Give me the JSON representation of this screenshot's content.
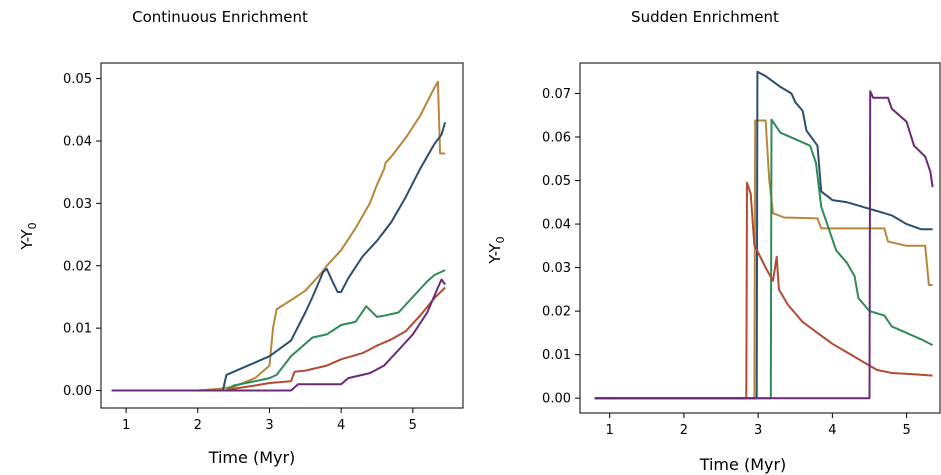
{
  "chart_data": [
    {
      "type": "line",
      "title": "Continuous Enrichment",
      "xlabel": "Time (Myr)",
      "ylabel": "Y-Y",
      "ylabel_subscript": "0",
      "xlim": [
        0.65,
        5.7
      ],
      "ylim": [
        -0.0028,
        0.0525
      ],
      "xticks": [
        1,
        2,
        3,
        4,
        5
      ],
      "yticks": [
        0.0,
        0.01,
        0.02,
        0.03,
        0.04,
        0.05
      ],
      "ytick_labels": [
        "0.00",
        "0.01",
        "0.02",
        "0.03",
        "0.04",
        "0.05"
      ],
      "series": [
        {
          "color": "#b8863b",
          "points": [
            [
              0.8,
              0
            ],
            [
              2.0,
              0
            ],
            [
              2.3,
              0.0003
            ],
            [
              2.5,
              0.0006
            ],
            [
              2.8,
              0.002
            ],
            [
              3.0,
              0.004
            ],
            [
              3.05,
              0.01
            ],
            [
              3.1,
              0.013
            ],
            [
              3.3,
              0.0145
            ],
            [
              3.5,
              0.016
            ],
            [
              3.7,
              0.0185
            ],
            [
              3.8,
              0.02
            ],
            [
              4.0,
              0.0225
            ],
            [
              4.2,
              0.026
            ],
            [
              4.4,
              0.03
            ],
            [
              4.5,
              0.033
            ],
            [
              4.6,
              0.0355
            ],
            [
              4.62,
              0.0365
            ],
            [
              4.7,
              0.0375
            ],
            [
              4.9,
              0.0405
            ],
            [
              5.1,
              0.044
            ],
            [
              5.3,
              0.0485
            ],
            [
              5.35,
              0.0495
            ],
            [
              5.38,
              0.038
            ],
            [
              5.45,
              0.038
            ]
          ]
        },
        {
          "color": "#2b506e",
          "points": [
            [
              0.8,
              0
            ],
            [
              2.35,
              0
            ],
            [
              2.4,
              0.0025
            ],
            [
              2.7,
              0.004
            ],
            [
              3.0,
              0.0055
            ],
            [
              3.3,
              0.008
            ],
            [
              3.5,
              0.0125
            ],
            [
              3.6,
              0.015
            ],
            [
              3.75,
              0.019
            ],
            [
              3.8,
              0.0195
            ],
            [
              3.88,
              0.0175
            ],
            [
              3.95,
              0.0158
            ],
            [
              4.0,
              0.0158
            ],
            [
              4.1,
              0.018
            ],
            [
              4.3,
              0.0215
            ],
            [
              4.5,
              0.024
            ],
            [
              4.7,
              0.027
            ],
            [
              4.9,
              0.031
            ],
            [
              5.1,
              0.0355
            ],
            [
              5.3,
              0.0395
            ],
            [
              5.4,
              0.041
            ],
            [
              5.45,
              0.043
            ]
          ]
        },
        {
          "color": "#2e8b57",
          "points": [
            [
              0.8,
              0
            ],
            [
              2.4,
              0
            ],
            [
              2.5,
              0.0008
            ],
            [
              2.8,
              0.0015
            ],
            [
              3.0,
              0.002
            ],
            [
              3.1,
              0.0025
            ],
            [
              3.2,
              0.004
            ],
            [
              3.3,
              0.0055
            ],
            [
              3.5,
              0.0075
            ],
            [
              3.6,
              0.0085
            ],
            [
              3.8,
              0.009
            ],
            [
              4.0,
              0.0105
            ],
            [
              4.2,
              0.011
            ],
            [
              4.35,
              0.0135
            ],
            [
              4.5,
              0.0118
            ],
            [
              4.6,
              0.012
            ],
            [
              4.8,
              0.0125
            ],
            [
              5.0,
              0.015
            ],
            [
              5.2,
              0.0175
            ],
            [
              5.3,
              0.0185
            ],
            [
              5.45,
              0.0193
            ]
          ]
        },
        {
          "color": "#b34a34",
          "points": [
            [
              0.8,
              0
            ],
            [
              2.4,
              0
            ],
            [
              2.5,
              0.0003
            ],
            [
              2.8,
              0.0008
            ],
            [
              3.0,
              0.0012
            ],
            [
              3.3,
              0.0015
            ],
            [
              3.35,
              0.003
            ],
            [
              3.5,
              0.0032
            ],
            [
              3.8,
              0.004
            ],
            [
              4.0,
              0.005
            ],
            [
              4.3,
              0.006
            ],
            [
              4.5,
              0.0072
            ],
            [
              4.7,
              0.0082
            ],
            [
              4.9,
              0.0095
            ],
            [
              5.1,
              0.012
            ],
            [
              5.3,
              0.0148
            ],
            [
              5.45,
              0.0165
            ]
          ]
        },
        {
          "color": "#6b2a77",
          "points": [
            [
              0.8,
              0
            ],
            [
              3.3,
              0
            ],
            [
              3.4,
              0.001
            ],
            [
              4.0,
              0.001
            ],
            [
              4.1,
              0.002
            ],
            [
              4.4,
              0.0028
            ],
            [
              4.6,
              0.004
            ],
            [
              4.8,
              0.0065
            ],
            [
              5.0,
              0.009
            ],
            [
              5.2,
              0.0125
            ],
            [
              5.35,
              0.0165
            ],
            [
              5.4,
              0.0178
            ],
            [
              5.45,
              0.017
            ]
          ]
        }
      ]
    },
    {
      "type": "line",
      "title": "Sudden Enrichment",
      "xlabel": "Time (Myr)",
      "ylabel": "Y-Y",
      "ylabel_subscript": "0",
      "xlim": [
        0.6,
        5.45
      ],
      "ylim": [
        -0.0034,
        0.077
      ],
      "xticks": [
        1,
        2,
        3,
        4,
        5
      ],
      "yticks": [
        0.0,
        0.01,
        0.02,
        0.03,
        0.04,
        0.05,
        0.06,
        0.07
      ],
      "ytick_labels": [
        "0.00",
        "0.01",
        "0.02",
        "0.03",
        "0.04",
        "0.05",
        "0.06",
        "0.07"
      ],
      "series": [
        {
          "color": "#b8863b",
          "points": [
            [
              0.8,
              0
            ],
            [
              2.95,
              0
            ],
            [
              2.96,
              0.0638
            ],
            [
              3.1,
              0.0638
            ],
            [
              3.15,
              0.05
            ],
            [
              3.2,
              0.0425
            ],
            [
              3.35,
              0.0415
            ],
            [
              3.8,
              0.0413
            ],
            [
              3.85,
              0.039
            ],
            [
              4.7,
              0.039
            ],
            [
              4.75,
              0.036
            ],
            [
              5.0,
              0.035
            ],
            [
              5.25,
              0.035
            ],
            [
              5.3,
              0.026
            ],
            [
              5.35,
              0.026
            ]
          ]
        },
        {
          "color": "#2b506e",
          "points": [
            [
              0.8,
              0
            ],
            [
              2.98,
              0
            ],
            [
              2.99,
              0.075
            ],
            [
              3.1,
              0.074
            ],
            [
              3.3,
              0.0715
            ],
            [
              3.45,
              0.07
            ],
            [
              3.5,
              0.068
            ],
            [
              3.6,
              0.066
            ],
            [
              3.65,
              0.0615
            ],
            [
              3.8,
              0.058
            ],
            [
              3.85,
              0.0475
            ],
            [
              4.0,
              0.0455
            ],
            [
              4.2,
              0.045
            ],
            [
              4.4,
              0.044
            ],
            [
              4.6,
              0.043
            ],
            [
              4.8,
              0.042
            ],
            [
              5.0,
              0.04
            ],
            [
              5.2,
              0.0388
            ],
            [
              5.35,
              0.0388
            ]
          ]
        },
        {
          "color": "#2e8b57",
          "points": [
            [
              0.8,
              0
            ],
            [
              3.17,
              0
            ],
            [
              3.18,
              0.064
            ],
            [
              3.3,
              0.061
            ],
            [
              3.5,
              0.0595
            ],
            [
              3.7,
              0.058
            ],
            [
              3.78,
              0.054
            ],
            [
              3.85,
              0.044
            ],
            [
              3.95,
              0.039
            ],
            [
              4.05,
              0.034
            ],
            [
              4.2,
              0.031
            ],
            [
              4.3,
              0.028
            ],
            [
              4.35,
              0.023
            ],
            [
              4.5,
              0.02
            ],
            [
              4.7,
              0.019
            ],
            [
              4.8,
              0.0165
            ],
            [
              5.0,
              0.015
            ],
            [
              5.2,
              0.0135
            ],
            [
              5.35,
              0.0122
            ]
          ]
        },
        {
          "color": "#b34a34",
          "points": [
            [
              0.8,
              0
            ],
            [
              2.84,
              0
            ],
            [
              2.85,
              0.0495
            ],
            [
              2.9,
              0.047
            ],
            [
              2.95,
              0.035
            ],
            [
              3.0,
              0.0335
            ],
            [
              3.1,
              0.03
            ],
            [
              3.2,
              0.027
            ],
            [
              3.25,
              0.0325
            ],
            [
              3.28,
              0.025
            ],
            [
              3.4,
              0.0215
            ],
            [
              3.6,
              0.0175
            ],
            [
              3.8,
              0.015
            ],
            [
              4.0,
              0.0125
            ],
            [
              4.2,
              0.0105
            ],
            [
              4.4,
              0.0085
            ],
            [
              4.6,
              0.0065
            ],
            [
              4.8,
              0.0058
            ],
            [
              5.1,
              0.0055
            ],
            [
              5.35,
              0.0052
            ]
          ]
        },
        {
          "color": "#6b2a77",
          "points": [
            [
              0.8,
              0
            ],
            [
              4.5,
              0
            ],
            [
              4.51,
              0.0705
            ],
            [
              4.55,
              0.069
            ],
            [
              4.75,
              0.069
            ],
            [
              4.8,
              0.0665
            ],
            [
              5.0,
              0.0635
            ],
            [
              5.1,
              0.058
            ],
            [
              5.25,
              0.0555
            ],
            [
              5.32,
              0.052
            ],
            [
              5.35,
              0.0485
            ]
          ]
        }
      ]
    }
  ]
}
